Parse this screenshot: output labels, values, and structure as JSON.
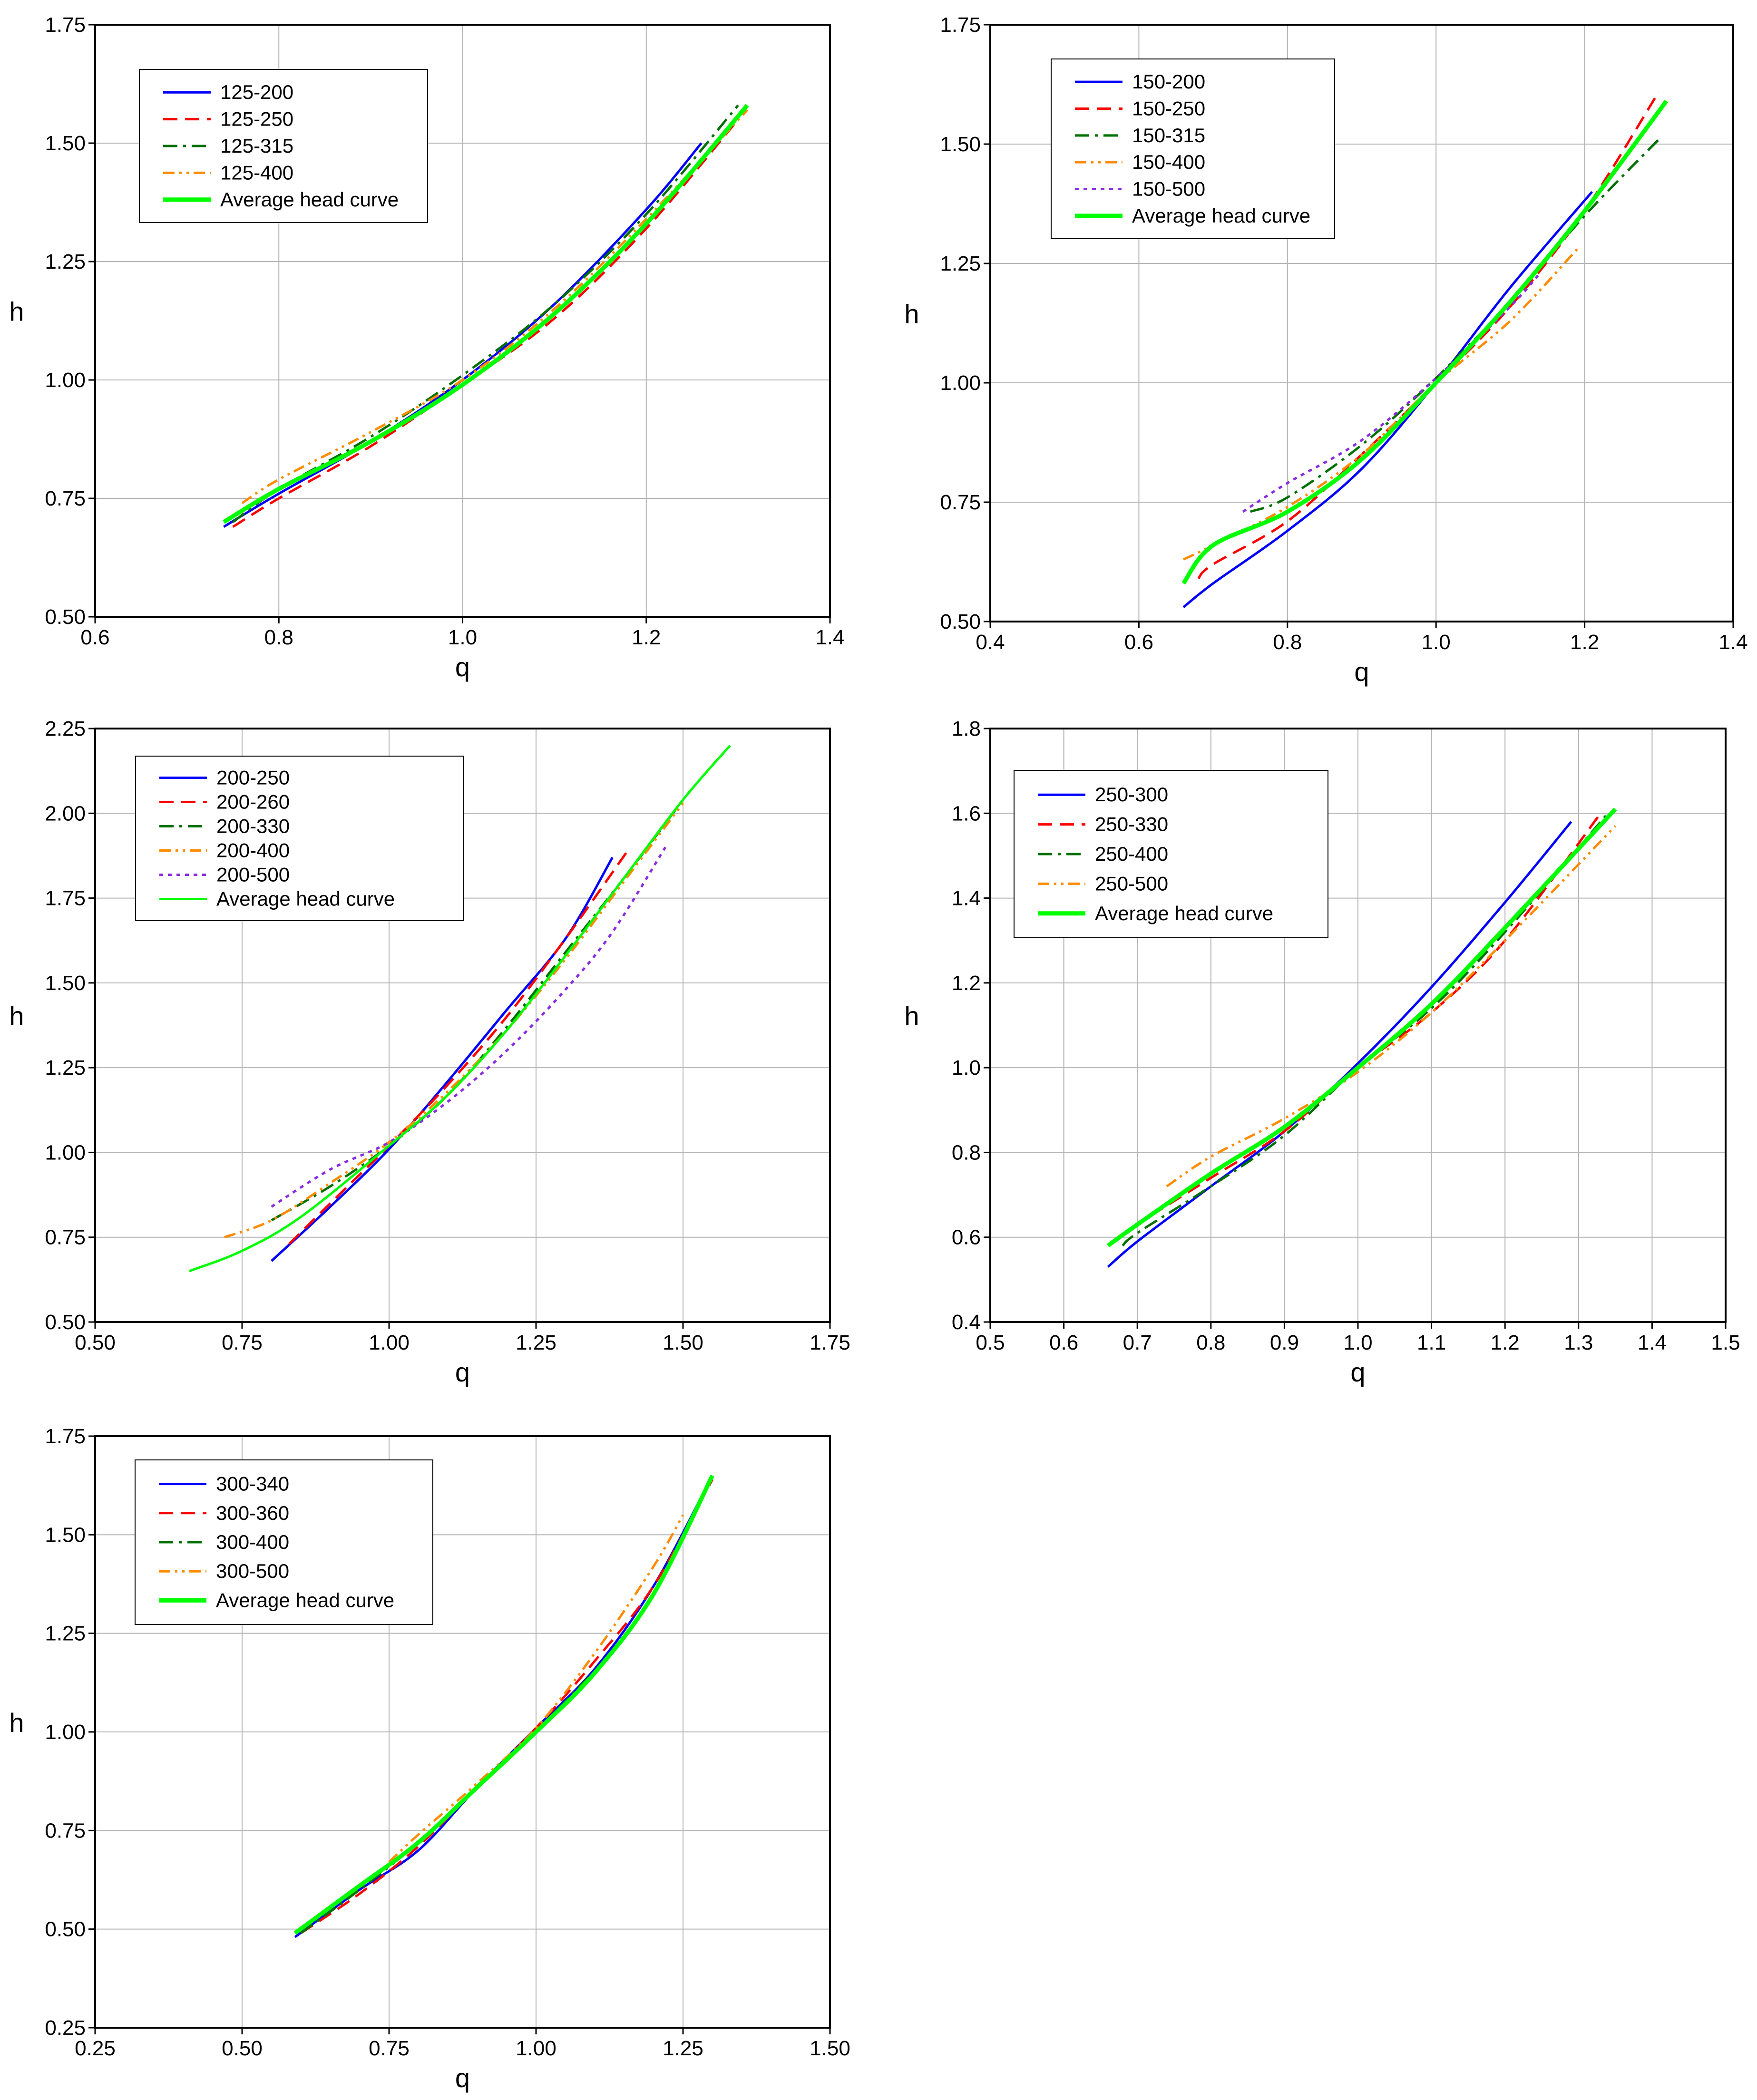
{
  "figure": {
    "chart_data": [
      {
        "type": "line",
        "panel": "top-left",
        "title": "",
        "xlabel": "q",
        "ylabel": "h",
        "xlim": [
          0.6,
          1.4
        ],
        "ylim": [
          0.5,
          1.75
        ],
        "xticks": [
          0.6,
          0.8,
          1.0,
          1.2,
          1.4
        ],
        "xtick_labels": [
          "0.6",
          "0.8",
          "1.0",
          "1.2",
          "1.4"
        ],
        "yticks": [
          0.5,
          0.75,
          1.0,
          1.25,
          1.5,
          1.75
        ],
        "ytick_labels": [
          "0.50",
          "0.75",
          "1.00",
          "1.25",
          "1.50",
          "1.75"
        ],
        "grid": true,
        "legend_position": "top-left",
        "series": [
          {
            "name": "125-200",
            "style": "solid",
            "color": "#0000ff",
            "width": 5,
            "x": [
              0.74,
              0.8,
              0.9,
              1.0,
              1.1,
              1.2,
              1.26
            ],
            "y": [
              0.69,
              0.76,
              0.87,
              1.0,
              1.16,
              1.36,
              1.5
            ]
          },
          {
            "name": "125-250",
            "style": "dashed",
            "color": "#ff0000",
            "width": 5,
            "x": [
              0.75,
              0.8,
              0.9,
              1.0,
              1.1,
              1.2,
              1.3
            ],
            "y": [
              0.69,
              0.75,
              0.86,
              0.99,
              1.13,
              1.32,
              1.55
            ]
          },
          {
            "name": "125-315",
            "style": "dashdot",
            "color": "#007000",
            "width": 5,
            "x": [
              0.75,
              0.8,
              0.9,
              1.0,
              1.1,
              1.2,
              1.3
            ],
            "y": [
              0.7,
              0.77,
              0.88,
              1.01,
              1.16,
              1.35,
              1.58
            ]
          },
          {
            "name": "125-400",
            "style": "dashdotdot",
            "color": "#ff8c00",
            "width": 5,
            "x": [
              0.76,
              0.8,
              0.9,
              1.0,
              1.1,
              1.2,
              1.31
            ],
            "y": [
              0.74,
              0.79,
              0.89,
              1.0,
              1.15,
              1.34,
              1.57
            ]
          },
          {
            "name": "Average head curve",
            "style": "solid",
            "color": "#00ff00",
            "width": 9,
            "x": [
              0.74,
              0.8,
              0.9,
              1.0,
              1.1,
              1.2,
              1.31
            ],
            "y": [
              0.7,
              0.77,
              0.87,
              0.99,
              1.14,
              1.33,
              1.58
            ]
          }
        ]
      },
      {
        "type": "line",
        "panel": "top-right",
        "title": "",
        "xlabel": "q",
        "ylabel": "h",
        "xlim": [
          0.4,
          1.4
        ],
        "ylim": [
          0.5,
          1.75
        ],
        "xticks": [
          0.4,
          0.6,
          0.8,
          1.0,
          1.2,
          1.4
        ],
        "xtick_labels": [
          "0.4",
          "0.6",
          "0.8",
          "1.0",
          "1.2",
          "1.4"
        ],
        "yticks": [
          0.5,
          0.75,
          1.0,
          1.25,
          1.5,
          1.75
        ],
        "ytick_labels": [
          "0.50",
          "0.75",
          "1.00",
          "1.25",
          "1.50",
          "1.75"
        ],
        "grid": true,
        "legend_position": "top-left",
        "series": [
          {
            "name": "150-200",
            "style": "solid",
            "color": "#0000ff",
            "width": 5,
            "x": [
              0.66,
              0.7,
              0.8,
              0.9,
              1.0,
              1.1,
              1.21
            ],
            "y": [
              0.53,
              0.58,
              0.69,
              0.82,
              1.0,
              1.2,
              1.4
            ]
          },
          {
            "name": "150-250",
            "style": "dashed",
            "color": "#ff0000",
            "width": 5,
            "x": [
              0.68,
              0.7,
              0.8,
              0.9,
              1.0,
              1.1,
              1.2,
              1.3
            ],
            "y": [
              0.59,
              0.62,
              0.71,
              0.85,
              1.0,
              1.16,
              1.36,
              1.61
            ]
          },
          {
            "name": "150-315",
            "style": "dashdot",
            "color": "#007000",
            "width": 5,
            "x": [
              0.75,
              0.8,
              0.9,
              1.0,
              1.1,
              1.2,
              1.3
            ],
            "y": [
              0.73,
              0.76,
              0.87,
              1.01,
              1.17,
              1.35,
              1.51
            ]
          },
          {
            "name": "150-400",
            "style": "dashdotdot",
            "color": "#ff8c00",
            "width": 5,
            "x": [
              0.66,
              0.7,
              0.8,
              0.9,
              1.0,
              1.1,
              1.19
            ],
            "y": [
              0.63,
              0.66,
              0.74,
              0.85,
              1.0,
              1.13,
              1.28
            ]
          },
          {
            "name": "150-500",
            "style": "dotted",
            "color": "#8a2be2",
            "width": 5,
            "x": [
              0.74,
              0.8,
              0.9,
              1.0,
              1.1,
              1.14
            ],
            "y": [
              0.73,
              0.79,
              0.88,
              1.01,
              1.16,
              1.23
            ]
          },
          {
            "name": "Average head curve",
            "style": "solid",
            "color": "#00ff00",
            "width": 9,
            "x": [
              0.66,
              0.7,
              0.8,
              0.9,
              1.0,
              1.1,
              1.2,
              1.31
            ],
            "y": [
              0.58,
              0.66,
              0.73,
              0.84,
              1.0,
              1.17,
              1.36,
              1.59
            ]
          }
        ]
      },
      {
        "type": "line",
        "panel": "middle-left",
        "title": "",
        "xlabel": "q",
        "ylabel": "h",
        "xlim": [
          0.5,
          1.75
        ],
        "ylim": [
          0.5,
          2.25
        ],
        "xticks": [
          0.5,
          0.75,
          1.0,
          1.25,
          1.5,
          1.75
        ],
        "xtick_labels": [
          "0.50",
          "0.75",
          "1.00",
          "1.25",
          "1.50",
          "1.75"
        ],
        "yticks": [
          0.5,
          0.75,
          1.0,
          1.25,
          1.5,
          1.75,
          2.0,
          2.25
        ],
        "ytick_labels": [
          "0.50",
          "0.75",
          "1.00",
          "1.25",
          "1.50",
          "1.75",
          "2.00",
          "2.25"
        ],
        "grid": true,
        "legend_position": "top-left",
        "series": [
          {
            "name": "200-250",
            "style": "solid",
            "color": "#0000ff",
            "width": 5,
            "x": [
              0.8,
              0.9,
              1.0,
              1.1,
              1.2,
              1.3,
              1.38
            ],
            "y": [
              0.68,
              0.84,
              1.01,
              1.21,
              1.42,
              1.63,
              1.87
            ]
          },
          {
            "name": "200-260",
            "style": "dashed",
            "color": "#ff0000",
            "width": 5,
            "x": [
              0.83,
              0.9,
              1.0,
              1.1,
              1.2,
              1.3,
              1.41
            ],
            "y": [
              0.73,
              0.85,
              1.02,
              1.2,
              1.4,
              1.63,
              1.9
            ]
          },
          {
            "name": "200-330",
            "style": "dashdot",
            "color": "#007000",
            "width": 5,
            "x": [
              0.8,
              0.9,
              1.0,
              1.1,
              1.2,
              1.3,
              1.4,
              1.5
            ],
            "y": [
              0.8,
              0.9,
              1.02,
              1.17,
              1.37,
              1.59,
              1.81,
              2.04
            ]
          },
          {
            "name": "200-400",
            "style": "dashdotdot",
            "color": "#ff8c00",
            "width": 5,
            "x": [
              0.72,
              0.8,
              0.9,
              1.0,
              1.1,
              1.2,
              1.3,
              1.4,
              1.5
            ],
            "y": [
              0.75,
              0.8,
              0.91,
              1.03,
              1.18,
              1.36,
              1.57,
              1.8,
              2.03
            ]
          },
          {
            "name": "200-500",
            "style": "dotted",
            "color": "#8a2be2",
            "width": 5,
            "x": [
              0.8,
              0.9,
              1.0,
              1.1,
              1.2,
              1.3,
              1.38,
              1.47
            ],
            "y": [
              0.84,
              0.95,
              1.03,
              1.15,
              1.3,
              1.48,
              1.65,
              1.9
            ]
          },
          {
            "name": "Average head curve",
            "style": "solid",
            "color": "#00ff00",
            "width": 5,
            "x": [
              0.66,
              0.75,
              0.85,
              1.0,
              1.1,
              1.2,
              1.3,
              1.4,
              1.5,
              1.58
            ],
            "y": [
              0.65,
              0.71,
              0.81,
              1.02,
              1.17,
              1.36,
              1.58,
              1.81,
              2.04,
              2.2
            ]
          }
        ]
      },
      {
        "type": "line",
        "panel": "middle-right",
        "title": "",
        "xlabel": "q",
        "ylabel": "h",
        "xlim": [
          0.5,
          1.5
        ],
        "ylim": [
          0.4,
          1.8
        ],
        "xticks": [
          0.5,
          0.6,
          0.7,
          0.8,
          0.9,
          1.0,
          1.1,
          1.2,
          1.3,
          1.4,
          1.5
        ],
        "xtick_labels": [
          "0.5",
          "0.6",
          "0.7",
          "0.8",
          "0.9",
          "1.0",
          "1.1",
          "1.2",
          "1.3",
          "1.4",
          "1.5"
        ],
        "yticks": [
          0.4,
          0.6,
          0.8,
          1.0,
          1.2,
          1.4,
          1.6,
          1.8
        ],
        "ytick_labels": [
          "0.4",
          "0.6",
          "0.8",
          "1.0",
          "1.2",
          "1.4",
          "1.6",
          "1.8"
        ],
        "grid": true,
        "legend_position": "top-left",
        "series": [
          {
            "name": "250-300",
            "style": "solid",
            "color": "#0000ff",
            "width": 5,
            "x": [
              0.66,
              0.7,
              0.8,
              0.9,
              1.0,
              1.1,
              1.2,
              1.29
            ],
            "y": [
              0.53,
              0.59,
              0.72,
              0.85,
              1.01,
              1.19,
              1.39,
              1.58
            ]
          },
          {
            "name": "250-330",
            "style": "dashed",
            "color": "#ff0000",
            "width": 5,
            "x": [
              0.67,
              0.7,
              0.8,
              0.9,
              1.0,
              1.1,
              1.2,
              1.33
            ],
            "y": [
              0.59,
              0.63,
              0.74,
              0.85,
              1.0,
              1.13,
              1.3,
              1.6
            ]
          },
          {
            "name": "250-400",
            "style": "dashdot",
            "color": "#007000",
            "width": 5,
            "x": [
              0.68,
              0.7,
              0.8,
              0.9,
              1.0,
              1.1,
              1.2,
              1.34
            ],
            "y": [
              0.58,
              0.61,
              0.72,
              0.84,
              1.0,
              1.14,
              1.32,
              1.6
            ]
          },
          {
            "name": "250-500",
            "style": "dashdotdot",
            "color": "#ff8c00",
            "width": 5,
            "x": [
              0.74,
              0.8,
              0.9,
              1.0,
              1.1,
              1.2,
              1.35
            ],
            "y": [
              0.72,
              0.79,
              0.88,
              0.99,
              1.13,
              1.3,
              1.57
            ]
          },
          {
            "name": "Average head curve",
            "style": "solid",
            "color": "#00ff00",
            "width": 9,
            "x": [
              0.66,
              0.7,
              0.8,
              0.9,
              1.0,
              1.1,
              1.2,
              1.35
            ],
            "y": [
              0.58,
              0.63,
              0.75,
              0.86,
              1.0,
              1.15,
              1.33,
              1.61
            ]
          }
        ]
      },
      {
        "type": "line",
        "panel": "bottom-left",
        "title": "",
        "xlabel": "q",
        "ylabel": "h",
        "xlim": [
          0.25,
          1.5
        ],
        "ylim": [
          0.25,
          1.75
        ],
        "xticks": [
          0.25,
          0.5,
          0.75,
          1.0,
          1.25,
          1.5
        ],
        "xtick_labels": [
          "0.25",
          "0.50",
          "0.75",
          "1.00",
          "1.25",
          "1.50"
        ],
        "yticks": [
          0.25,
          0.5,
          0.75,
          1.0,
          1.25,
          1.5,
          1.75
        ],
        "ytick_labels": [
          "0.25",
          "0.50",
          "0.75",
          "1.00",
          "1.25",
          "1.50",
          "1.75"
        ],
        "grid": true,
        "legend_position": "top-left",
        "series": [
          {
            "name": "300-340",
            "style": "solid",
            "color": "#0000ff",
            "width": 5,
            "x": [
              0.59,
              0.7,
              0.8,
              0.9,
              1.0,
              1.1,
              1.2,
              1.3
            ],
            "y": [
              0.48,
              0.6,
              0.7,
              0.86,
              1.01,
              1.16,
              1.37,
              1.65
            ]
          },
          {
            "name": "300-360",
            "style": "dashed",
            "color": "#ff0000",
            "width": 5,
            "x": [
              0.6,
              0.7,
              0.8,
              0.9,
              1.0,
              1.1,
              1.2,
              1.3
            ],
            "y": [
              0.49,
              0.59,
              0.71,
              0.86,
              1.01,
              1.18,
              1.37,
              1.64
            ]
          },
          {
            "name": "300-400",
            "style": "dashdot",
            "color": "#007000",
            "width": 5,
            "x": [
              0.6,
              0.7,
              0.8,
              0.9,
              1.0,
              1.09
            ],
            "y": [
              0.49,
              0.6,
              0.72,
              0.86,
              1.0,
              1.14
            ]
          },
          {
            "name": "300-500",
            "style": "dashdotdot",
            "color": "#ff8c00",
            "width": 5,
            "x": [
              0.75,
              0.8,
              0.9,
              1.0,
              1.1,
              1.2,
              1.25
            ],
            "y": [
              0.67,
              0.74,
              0.87,
              1.01,
              1.2,
              1.42,
              1.55
            ]
          },
          {
            "name": "Average head curve",
            "style": "solid",
            "color": "#00ff00",
            "width": 9,
            "x": [
              0.59,
              0.7,
              0.8,
              0.9,
              1.0,
              1.1,
              1.2,
              1.3
            ],
            "y": [
              0.49,
              0.61,
              0.72,
              0.86,
              1.0,
              1.15,
              1.35,
              1.65
            ]
          }
        ]
      }
    ]
  }
}
